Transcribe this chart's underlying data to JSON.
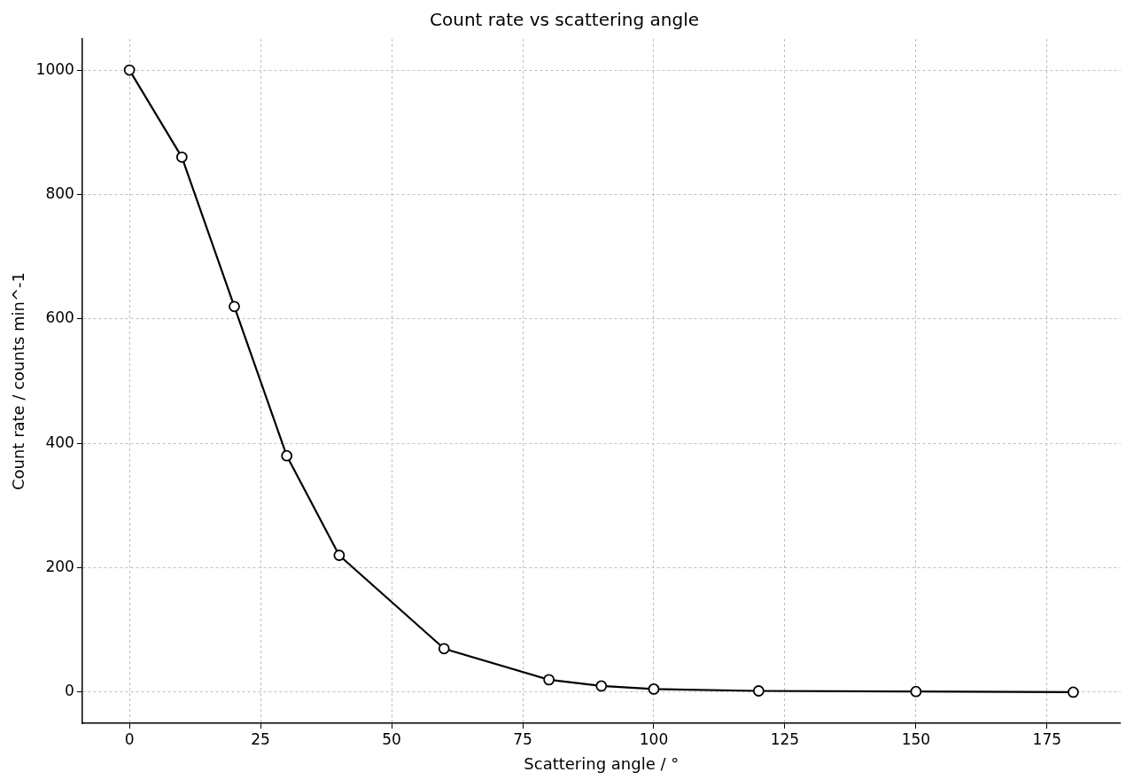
{
  "chart_data": {
    "type": "line",
    "title": "Count rate vs scattering angle",
    "xlabel": "Scattering angle / °",
    "ylabel": "Count rate / counts min^-1",
    "x": [
      0,
      10,
      20,
      30,
      40,
      60,
      80,
      90,
      100,
      120,
      150,
      180
    ],
    "series": [
      {
        "color": "#000000",
        "values": [
          1000,
          860,
          620,
          380,
          220,
          70,
          20,
          10,
          5,
          2,
          1,
          0
        ]
      }
    ],
    "xlim": [
      -9,
      189
    ],
    "xticks": [
      0,
      25,
      50,
      75,
      100,
      125,
      150,
      175
    ],
    "ylim": [
      -50,
      1050
    ],
    "yticks": [
      0,
      200,
      400,
      600,
      800,
      1000
    ],
    "grid": true,
    "legend": false,
    "marker": "circle",
    "line_style": "solid"
  }
}
